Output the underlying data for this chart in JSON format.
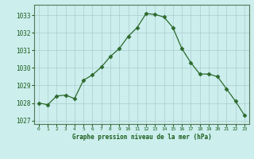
{
  "hours": [
    0,
    1,
    2,
    3,
    4,
    5,
    6,
    7,
    8,
    9,
    10,
    11,
    12,
    13,
    14,
    15,
    16,
    17,
    18,
    19,
    20,
    21,
    22,
    23
  ],
  "pressure": [
    1028.0,
    1027.9,
    1028.4,
    1028.45,
    1028.25,
    1029.3,
    1029.6,
    1030.05,
    1030.65,
    1031.1,
    1031.8,
    1032.3,
    1033.1,
    1033.05,
    1032.9,
    1032.3,
    1031.1,
    1030.3,
    1029.65,
    1029.65,
    1029.5,
    1028.8,
    1028.1,
    1027.3
  ],
  "line_color": "#2d6a2d",
  "marker": "D",
  "marker_size": 2.5,
  "bg_color": "#cceeed",
  "grid_color": "#aacccc",
  "xlabel": "Graphe pression niveau de la mer (hPa)",
  "xlabel_color": "#1a5c1a",
  "tick_color": "#1a5c1a",
  "ylim": [
    1026.8,
    1033.6
  ],
  "yticks": [
    1027,
    1028,
    1029,
    1030,
    1031,
    1032,
    1033
  ],
  "xtick_labels": [
    "0",
    "1",
    "2",
    "3",
    "4",
    "5",
    "6",
    "7",
    "8",
    "9",
    "10",
    "11",
    "12",
    "13",
    "14",
    "15",
    "16",
    "17",
    "18",
    "19",
    "20",
    "21",
    "22",
    "23"
  ]
}
